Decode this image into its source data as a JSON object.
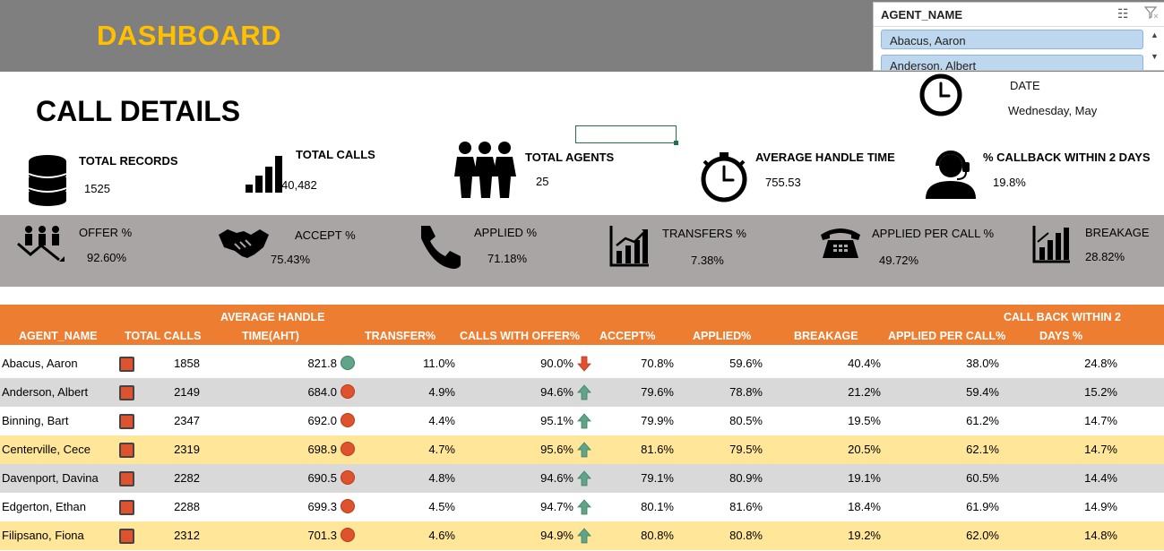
{
  "header": {
    "title": "DASHBOARD"
  },
  "slicer": {
    "title": "AGENT_NAME",
    "items": [
      "Abacus, Aaron",
      "Anderson, Albert"
    ]
  },
  "section": {
    "title": "CALL DETAILS"
  },
  "date": {
    "label": "DATE",
    "value": "Wednesday, May"
  },
  "kpis": [
    {
      "label": "TOTAL RECORDS",
      "value": "1525",
      "icon": "database-icon"
    },
    {
      "label": "TOTAL CALLS",
      "value": "40,482",
      "icon": "signal-bars-icon"
    },
    {
      "label": "TOTAL AGENTS",
      "value": "25",
      "icon": "people-icon"
    },
    {
      "label": "AVERAGE HANDLE TIME",
      "value": "755.53",
      "icon": "stopwatch-icon"
    },
    {
      "label": "% CALLBACK WITHIN 2 DAYS",
      "value": "19.8%",
      "icon": "headset-agent-icon"
    }
  ],
  "rates": [
    {
      "label": "OFFER %",
      "value": "92.60%",
      "icon": "group-trend-icon"
    },
    {
      "label": "ACCEPT %",
      "value": "75.43%",
      "icon": "handshake-icon"
    },
    {
      "label": "APPLIED %",
      "value": "71.18%",
      "icon": "phone-handset-icon"
    },
    {
      "label": "TRANSFERS %",
      "value": "7.38%",
      "icon": "growth-chart-icon"
    },
    {
      "label": "APPLIED PER CALL %",
      "value": "49.72%",
      "icon": "telephone-icon"
    },
    {
      "label": "BREAKAGE",
      "value": "28.82%",
      "icon": "bar-chart-icon"
    }
  ],
  "table": {
    "headers": {
      "agent": "AGENT_NAME",
      "calls": "TOTAL CALLS",
      "aht1": "AVERAGE HANDLE",
      "aht2": "TIME(AHT)",
      "transfer": "TRANSFER%",
      "offer": "CALLS WITH OFFER%",
      "accept": "ACCEPT%",
      "applied": "APPLIED%",
      "breakage": "BREAKAGE",
      "apc": "APPLIED PER CALL%",
      "cb1": "CALL BACK WITHIN 2",
      "cb2": "DAYS %"
    },
    "colors": {
      "red": "#e0522d",
      "green": "#5fa58a",
      "row_gray": "#d9d9d9",
      "row_yellow": "#ffe699",
      "header": "#ed7d31"
    },
    "rows": [
      {
        "agent": "Abacus, Aaron",
        "calls": "1858",
        "aht": "821.8",
        "aht_status": "green",
        "transfer": "11.0%",
        "offer": "90.0%",
        "offer_trend": "down",
        "accept": "70.8%",
        "applied": "59.6%",
        "breakage": "40.4%",
        "apc": "38.0%",
        "cb": "24.8%",
        "bg": "white"
      },
      {
        "agent": "Anderson, Albert",
        "calls": "2149",
        "aht": "684.0",
        "aht_status": "red",
        "transfer": "4.9%",
        "offer": "94.6%",
        "offer_trend": "up",
        "accept": "79.6%",
        "applied": "78.8%",
        "breakage": "21.2%",
        "apc": "59.4%",
        "cb": "15.2%",
        "bg": "gray"
      },
      {
        "agent": "Binning, Bart",
        "calls": "2347",
        "aht": "692.0",
        "aht_status": "red",
        "transfer": "4.4%",
        "offer": "95.1%",
        "offer_trend": "up",
        "accept": "79.9%",
        "applied": "80.5%",
        "breakage": "19.5%",
        "apc": "61.2%",
        "cb": "14.7%",
        "bg": "white"
      },
      {
        "agent": "Centerville, Cece",
        "calls": "2319",
        "aht": "698.9",
        "aht_status": "red",
        "transfer": "4.7%",
        "offer": "95.6%",
        "offer_trend": "up",
        "accept": "81.6%",
        "applied": "79.5%",
        "breakage": "20.5%",
        "apc": "62.1%",
        "cb": "14.7%",
        "bg": "yellow"
      },
      {
        "agent": "Davenport, Davina",
        "calls": "2282",
        "aht": "690.5",
        "aht_status": "red",
        "transfer": "4.8%",
        "offer": "94.6%",
        "offer_trend": "up",
        "accept": "79.1%",
        "applied": "80.9%",
        "breakage": "19.1%",
        "apc": "60.5%",
        "cb": "14.4%",
        "bg": "gray"
      },
      {
        "agent": "Edgerton, Ethan",
        "calls": "2288",
        "aht": "699.3",
        "aht_status": "red",
        "transfer": "4.5%",
        "offer": "94.7%",
        "offer_trend": "up",
        "accept": "80.1%",
        "applied": "81.6%",
        "breakage": "18.4%",
        "apc": "61.9%",
        "cb": "14.9%",
        "bg": "white"
      },
      {
        "agent": "Filipsano, Fiona",
        "calls": "2312",
        "aht": "701.3",
        "aht_status": "red",
        "transfer": "4.6%",
        "offer": "94.9%",
        "offer_trend": "up",
        "accept": "80.8%",
        "applied": "80.8%",
        "breakage": "19.2%",
        "apc": "62.0%",
        "cb": "14.8%",
        "bg": "yellow"
      }
    ]
  }
}
